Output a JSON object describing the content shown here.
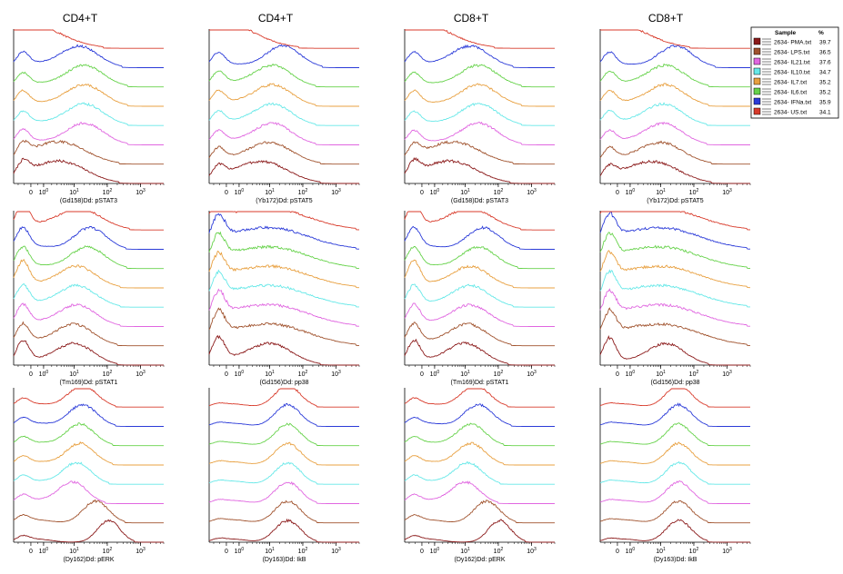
{
  "chart_data": {
    "type": "line",
    "kind": "stacked-histogram-overlay",
    "column_titles": [
      "CD4+T",
      "CD4+T",
      "CD8+T",
      "CD8+T"
    ],
    "x_ticks": [
      {
        "value": 0,
        "label": "0",
        "exp": ""
      },
      {
        "value": 1,
        "label": "10",
        "exp": "0"
      },
      {
        "value": 10,
        "label": "10",
        "exp": "1"
      },
      {
        "value": 100,
        "label": "10",
        "exp": "2"
      },
      {
        "value": 1000,
        "label": "10",
        "exp": "3"
      }
    ],
    "x_scale": "arcsinh",
    "xlim": [
      -1.5,
      5000
    ],
    "legend": {
      "header": [
        "Sample",
        "%"
      ],
      "entries": [
        {
          "name": "2634- PMA.txt",
          "percent": "39.7",
          "color": "#8b1a1a"
        },
        {
          "name": "2634- LPS.txt",
          "percent": "36.5",
          "color": "#a0522d"
        },
        {
          "name": "2634- IL21.txt",
          "percent": "37.6",
          "color": "#e066e0"
        },
        {
          "name": "2634- IL10.txt",
          "percent": "34.7",
          "color": "#66e8e8"
        },
        {
          "name": "2634- IL7.txt",
          "percent": "35.2",
          "color": "#e8a040"
        },
        {
          "name": "2634- IL6.txt",
          "percent": "35.2",
          "color": "#66d24a"
        },
        {
          "name": "2634- IFNa.txt",
          "percent": "35.9",
          "color": "#2a3ad8"
        },
        {
          "name": "2634- US.txt",
          "percent": "34.1",
          "color": "#d83a2a"
        }
      ]
    },
    "panels": [
      {
        "row": 0,
        "col": 0,
        "xlabel": "(Gd158)Dd: pSTAT3",
        "peak_x": [
          4,
          4,
          20,
          20,
          20,
          20,
          14,
          0
        ],
        "spike": [
          0.6,
          0.55,
          0.55,
          0.5,
          0.55,
          0.5,
          0.55,
          1.0
        ],
        "spread": [
          0.8,
          0.8,
          0.6,
          0.6,
          0.6,
          0.6,
          0.6,
          1.0
        ]
      },
      {
        "row": 0,
        "col": 1,
        "xlabel": "(Yb172)Dd: pSTAT5",
        "peak_x": [
          6,
          10,
          12,
          12,
          12,
          12,
          25,
          0
        ],
        "spike": [
          0.5,
          0.55,
          0.5,
          0.5,
          0.55,
          0.55,
          0.55,
          1.0
        ],
        "spread": [
          0.8,
          0.7,
          0.6,
          0.6,
          0.6,
          0.6,
          0.55,
          1.0
        ]
      },
      {
        "row": 0,
        "col": 2,
        "xlabel": "(Gd158)Dd: pSTAT3",
        "peak_x": [
          4,
          5,
          25,
          25,
          25,
          25,
          14,
          0
        ],
        "spike": [
          0.6,
          0.55,
          0.5,
          0.5,
          0.55,
          0.5,
          0.55,
          1.0
        ],
        "spread": [
          0.8,
          0.8,
          0.6,
          0.6,
          0.6,
          0.6,
          0.6,
          1.0
        ]
      },
      {
        "row": 0,
        "col": 3,
        "xlabel": "(Yb172)Dd: pSTAT5",
        "peak_x": [
          6,
          10,
          12,
          12,
          14,
          14,
          28,
          0
        ],
        "spike": [
          0.5,
          0.55,
          0.5,
          0.5,
          0.55,
          0.55,
          0.55,
          1.0
        ],
        "spread": [
          0.8,
          0.7,
          0.6,
          0.6,
          0.6,
          0.6,
          0.55,
          1.0
        ]
      },
      {
        "row": 1,
        "col": 0,
        "xlabel": "(Tm169)Dd: pSTAT1",
        "peak_x": [
          10,
          10,
          12,
          12,
          12,
          25,
          30,
          14
        ],
        "spike": [
          0.9,
          0.8,
          0.8,
          0.8,
          1.0,
          0.8,
          0.8,
          1.0
        ],
        "spread": [
          0.6,
          0.6,
          0.6,
          0.6,
          0.6,
          0.55,
          0.5,
          0.7
        ]
      },
      {
        "row": 1,
        "col": 1,
        "xlabel": "(Gd156)Dd: pp38",
        "peak_x": [
          10,
          10,
          10,
          10,
          10,
          10,
          10,
          10
        ],
        "spike": [
          1.0,
          1.0,
          1.0,
          1.0,
          1.0,
          1.0,
          1.0,
          1.0
        ],
        "spread": [
          0.7,
          1.2,
          1.2,
          1.2,
          1.2,
          1.2,
          1.2,
          1.2
        ]
      },
      {
        "row": 1,
        "col": 2,
        "xlabel": "(Tm169)Dd: pSTAT1",
        "peak_x": [
          10,
          12,
          14,
          14,
          14,
          25,
          35,
          14
        ],
        "spike": [
          0.9,
          0.8,
          0.8,
          0.8,
          1.0,
          0.8,
          0.8,
          1.0
        ],
        "spread": [
          0.6,
          0.6,
          0.6,
          0.6,
          0.6,
          0.55,
          0.5,
          0.7
        ]
      },
      {
        "row": 1,
        "col": 3,
        "xlabel": "(Gd156)Dd: pp38",
        "peak_x": [
          14,
          10,
          10,
          10,
          10,
          10,
          10,
          10
        ],
        "spike": [
          1.0,
          1.0,
          1.0,
          1.0,
          1.0,
          1.0,
          1.0,
          1.0
        ],
        "spread": [
          0.6,
          1.2,
          1.2,
          1.2,
          1.2,
          1.2,
          1.2,
          1.2
        ]
      },
      {
        "row": 2,
        "col": 0,
        "xlabel": "(Dy162)Dd: pERK",
        "peak_x": [
          110,
          45,
          9,
          12,
          15,
          15,
          18,
          18
        ],
        "spike": [
          0.2,
          0.25,
          0.3,
          0.3,
          0.3,
          0.3,
          0.3,
          0.3
        ],
        "spread": [
          0.35,
          0.4,
          0.45,
          0.45,
          0.45,
          0.45,
          0.45,
          0.45
        ]
      },
      {
        "row": 2,
        "col": 1,
        "xlabel": "(Dy163)Dd: IkB",
        "peak_x": [
          35,
          35,
          35,
          35,
          35,
          35,
          35,
          35
        ],
        "spike": [
          0.1,
          0.1,
          0.1,
          0.1,
          0.1,
          0.1,
          0.1,
          0.1
        ],
        "spread": [
          0.4,
          0.4,
          0.4,
          0.4,
          0.4,
          0.4,
          0.4,
          0.4
        ]
      },
      {
        "row": 2,
        "col": 2,
        "xlabel": "(Dy162)Dd: pERK",
        "peak_x": [
          110,
          45,
          10,
          12,
          15,
          15,
          25,
          20
        ],
        "spike": [
          0.2,
          0.25,
          0.3,
          0.3,
          0.3,
          0.3,
          0.3,
          0.3
        ],
        "spread": [
          0.35,
          0.4,
          0.45,
          0.45,
          0.45,
          0.45,
          0.45,
          0.45
        ]
      },
      {
        "row": 2,
        "col": 3,
        "xlabel": "(Dy163)Dd: IkB",
        "peak_x": [
          35,
          35,
          35,
          35,
          35,
          35,
          35,
          35
        ],
        "spike": [
          0.1,
          0.1,
          0.1,
          0.1,
          0.1,
          0.1,
          0.1,
          0.1
        ],
        "spread": [
          0.4,
          0.4,
          0.4,
          0.4,
          0.4,
          0.4,
          0.4,
          0.4
        ]
      }
    ]
  }
}
